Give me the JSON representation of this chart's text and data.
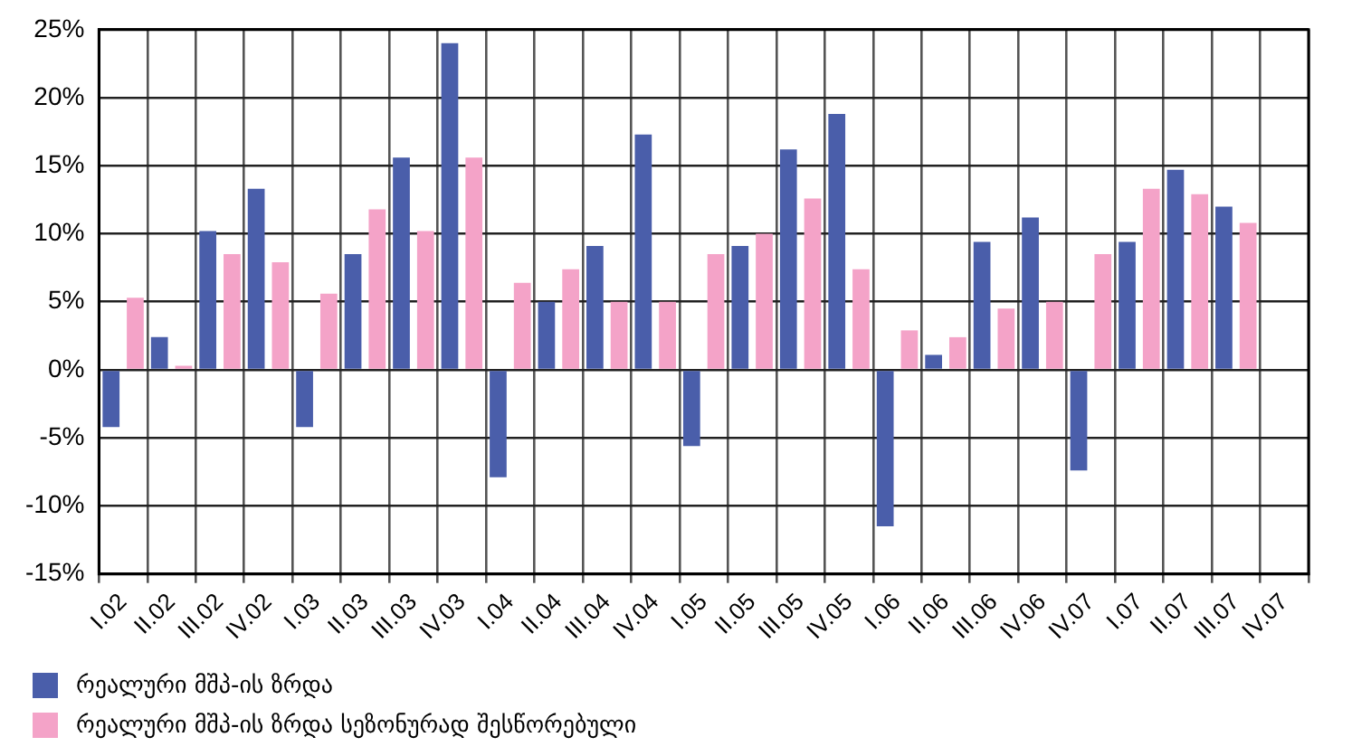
{
  "chart_data": {
    "type": "bar",
    "categories": [
      "I.02",
      "II.02",
      "III.02",
      "IV.02",
      "I.03",
      "II.03",
      "III.03",
      "IV.03",
      "I.04",
      "II.04",
      "III.04",
      "IV.04",
      "I.05",
      "II.05",
      "III.05",
      "IV.05",
      "I.06",
      "II.06",
      "III.06",
      "IV.06",
      "IV.07",
      "I.07",
      "II.07",
      "III.07",
      "IV.07"
    ],
    "series": [
      {
        "name": "რეალური მშპ-ის ზრდა",
        "color": "#4a5eaa",
        "values": [
          -4.2,
          2.4,
          10.2,
          13.3,
          -4.2,
          8.5,
          15.6,
          24.0,
          -7.9,
          5.0,
          9.1,
          17.3,
          -5.6,
          9.1,
          16.2,
          18.8,
          -11.5,
          1.1,
          9.4,
          11.2,
          -7.4,
          9.4,
          14.7,
          12.0,
          null
        ]
      },
      {
        "name": "რეალური მშპ-ის ზრდა სეზონურად შესწორებული",
        "color": "#f4a3c8",
        "values": [
          5.3,
          0.3,
          8.5,
          7.9,
          5.6,
          11.8,
          10.2,
          15.6,
          6.4,
          7.4,
          5.0,
          5.0,
          8.5,
          10.0,
          12.6,
          7.4,
          2.9,
          2.4,
          4.5,
          5.0,
          8.5,
          13.3,
          12.9,
          10.8,
          null
        ]
      }
    ],
    "ylim": [
      -15,
      25
    ],
    "yticks": [
      {
        "value": -15,
        "label": "-15%"
      },
      {
        "value": -10,
        "label": "-10%"
      },
      {
        "value": -5,
        "label": "-5%"
      },
      {
        "value": 0,
        "label": "0%"
      },
      {
        "value": 5,
        "label": "5%"
      },
      {
        "value": 10,
        "label": "10%"
      },
      {
        "value": 15,
        "label": "15%"
      },
      {
        "value": 20,
        "label": "20%"
      },
      {
        "value": 25,
        "label": "25%"
      }
    ],
    "grid": true,
    "legend": "bottom left"
  }
}
